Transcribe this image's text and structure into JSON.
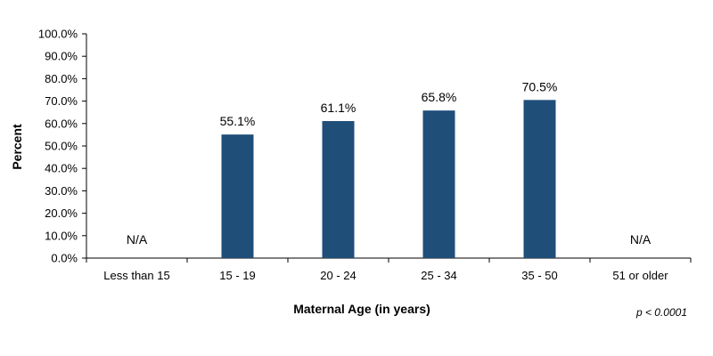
{
  "chart_data": {
    "type": "bar",
    "title": "",
    "xlabel": "Maternal Age (in years)",
    "ylabel": "Percent",
    "ylim": [
      0,
      100
    ],
    "yticks": [
      0,
      10,
      20,
      30,
      40,
      50,
      60,
      70,
      80,
      90,
      100
    ],
    "ytick_labels": [
      "0.0%",
      "10.0%",
      "20.0%",
      "30.0%",
      "40.0%",
      "50.0%",
      "60.0%",
      "70.0%",
      "80.0%",
      "90.0%",
      "100.0%"
    ],
    "categories": [
      "Less than 15",
      "15 - 19",
      "20 - 24",
      "25 - 34",
      "35 - 50",
      "51 or older"
    ],
    "values": [
      null,
      55.1,
      61.1,
      65.8,
      70.5,
      null
    ],
    "data_labels": [
      "N/A",
      "55.1%",
      "61.1%",
      "65.8%",
      "70.5%",
      "N/A"
    ],
    "bar_color": "#1f4e79",
    "grid": false,
    "legend": "none",
    "annotation": "p < 0.0001"
  }
}
